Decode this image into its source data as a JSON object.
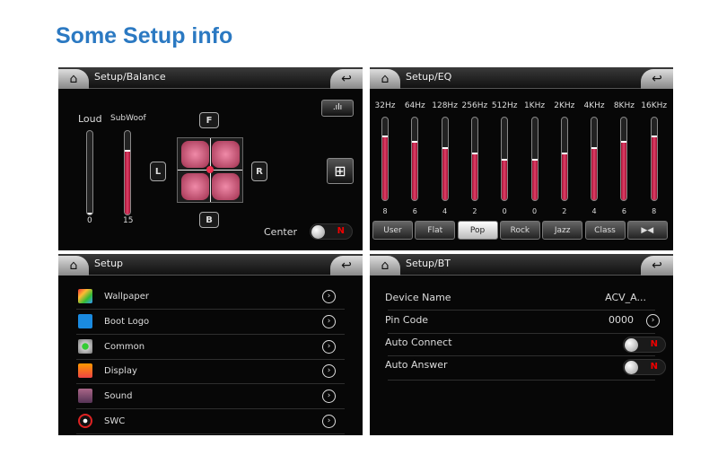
{
  "page_title": "Some Setup info",
  "balance": {
    "title": "Setup/Balance",
    "loud_label": "Loud",
    "subwoof_label": "SubWoof",
    "loud_value": "0",
    "subwoof_value": "15",
    "loud_level": 0,
    "subwoof_level": 0.77,
    "front": "F",
    "back": "B",
    "left": "L",
    "right": "R",
    "center_label": "Center",
    "center_toggle": "N",
    "eq_icon": "equalizer-icon",
    "grid_icon": "grid-icon"
  },
  "eq": {
    "title": "Setup/EQ",
    "bands": [
      "32Hz",
      "64Hz",
      "128Hz",
      "256Hz",
      "512Hz",
      "1KHz",
      "2KHz",
      "4KHz",
      "8KHz",
      "16KHz"
    ],
    "values": [
      "8",
      "6",
      "4",
      "2",
      "0",
      "0",
      "2",
      "4",
      "6",
      "8"
    ],
    "range": [
      -14,
      14
    ],
    "presets": [
      "User",
      "Flat",
      "Pop",
      "Rock",
      "Jazz",
      "Class"
    ],
    "selected_preset": "Pop",
    "reset_icon": "bowtie-icon"
  },
  "setup": {
    "title": "Setup",
    "items": [
      {
        "label": "Wallpaper",
        "icon": "wallpaper-icon"
      },
      {
        "label": "Boot Logo",
        "icon": "monitor-icon"
      },
      {
        "label": "Common",
        "icon": "gear-icon"
      },
      {
        "label": "Display",
        "icon": "sun-icon"
      },
      {
        "label": "Sound",
        "icon": "sound-icon"
      },
      {
        "label": "SWC",
        "icon": "steering-wheel-icon"
      }
    ]
  },
  "bt": {
    "title": "Setup/BT",
    "device_name_label": "Device Name",
    "device_name": "ACV_A...",
    "pin_label": "Pin Code",
    "pin": "0000",
    "auto_connect_label": "Auto Connect",
    "auto_connect": "N",
    "auto_answer_label": "Auto Answer",
    "auto_answer": "N"
  },
  "colors": {
    "title": "#2b79c2",
    "accent": "#e0406a",
    "toggle_off": "#ee0000"
  }
}
